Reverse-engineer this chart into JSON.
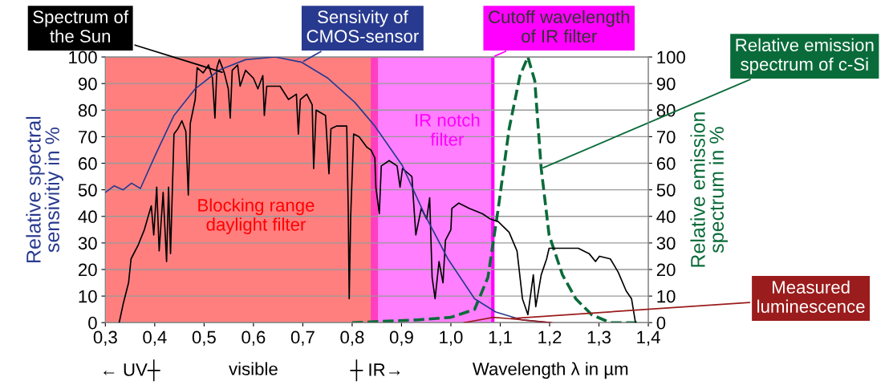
{
  "chart_data": {
    "type": "line",
    "xlabel": "Wavelength λ in µm",
    "ylabel": "Relative spectral\nsensivitiy in %",
    "y2label": "Relative emission\nspectrum in %",
    "xlim": [
      0.3,
      1.4
    ],
    "xticks": [
      {
        "value": 0.3,
        "label": "0,3"
      },
      {
        "value": 0.4,
        "label": "0,4"
      },
      {
        "value": 0.5,
        "label": "0,5"
      },
      {
        "value": 0.6,
        "label": "0,6"
      },
      {
        "value": 0.7,
        "label": "0,7"
      },
      {
        "value": 0.8,
        "label": "0,8"
      },
      {
        "value": 0.9,
        "label": "0,9"
      },
      {
        "value": 1.0,
        "label": "1,0"
      },
      {
        "value": 1.1,
        "label": "1,1"
      },
      {
        "value": 1.2,
        "label": "1,2"
      },
      {
        "value": 1.3,
        "label": "1,3"
      },
      {
        "value": 1.4,
        "label": "1,4"
      }
    ],
    "ylim": [
      0,
      100
    ],
    "yticks": [
      0,
      10,
      20,
      30,
      40,
      50,
      60,
      70,
      80,
      90,
      100
    ],
    "y2lim": [
      0,
      100
    ],
    "y2ticks": [
      0,
      10,
      20,
      30,
      40,
      50,
      60,
      70,
      80,
      90,
      100
    ],
    "grid": true,
    "legend": false,
    "marker": "none",
    "series": [
      {
        "name": "Spectrum of\nthe Sun",
        "color": "#000000",
        "line_style": "solid",
        "x": [
          0.328,
          0.336,
          0.347,
          0.352,
          0.366,
          0.379,
          0.393,
          0.398,
          0.404,
          0.409,
          0.417,
          0.424,
          0.428,
          0.432,
          0.439,
          0.447,
          0.455,
          0.463,
          0.468,
          0.472,
          0.482,
          0.486,
          0.498,
          0.509,
          0.517,
          0.522,
          0.526,
          0.531,
          0.541,
          0.549,
          0.553,
          0.557,
          0.568,
          0.573,
          0.584,
          0.6,
          0.609,
          0.619,
          0.622,
          0.627,
          0.654,
          0.671,
          0.687,
          0.691,
          0.695,
          0.708,
          0.719,
          0.722,
          0.727,
          0.746,
          0.753,
          0.757,
          0.768,
          0.789,
          0.792,
          0.794,
          0.797,
          0.803,
          0.814,
          0.83,
          0.838,
          0.846,
          0.848,
          0.855,
          0.859,
          0.875,
          0.891,
          0.897,
          0.902,
          0.921,
          0.929,
          0.94,
          0.951,
          0.957,
          0.962,
          0.968,
          0.976,
          0.984,
          0.989,
          1.0,
          1.002,
          1.016,
          1.037,
          1.064,
          1.08,
          1.096,
          1.118,
          1.134,
          1.145,
          1.156,
          1.167,
          1.172,
          1.183,
          1.194,
          1.199,
          1.215,
          1.237,
          1.258,
          1.28,
          1.293,
          1.301,
          1.323,
          1.339,
          1.355,
          1.366,
          1.374
        ],
        "values": [
          0,
          7,
          15,
          24,
          29,
          35,
          44,
          33,
          51,
          27,
          49,
          23,
          51,
          26,
          71,
          73,
          76,
          72,
          48,
          75,
          84,
          96,
          94,
          97,
          92,
          77,
          96,
          99,
          94,
          88,
          77,
          95,
          97,
          89,
          95,
          92,
          88,
          93,
          78,
          89,
          89,
          84,
          86,
          71,
          84,
          86,
          82,
          58,
          80,
          78,
          56,
          73,
          74,
          74,
          43,
          9,
          40,
          71,
          70,
          66,
          65,
          62,
          51,
          41,
          59,
          61,
          59,
          51,
          58,
          55,
          33,
          43,
          39,
          47,
          17,
          9,
          23,
          15,
          31,
          35,
          43,
          45,
          43,
          41,
          39,
          38,
          34,
          27,
          9,
          3,
          18,
          6,
          18,
          24,
          28,
          28,
          28,
          28,
          26,
          23,
          25,
          24,
          19,
          12,
          9,
          0
        ]
      },
      {
        "name": "Sensivity of\nCMOS-sensor",
        "color": "#283a8f",
        "line_style": "solid",
        "x": [
          0.3,
          0.318,
          0.336,
          0.353,
          0.371,
          0.401,
          0.439,
          0.482,
          0.53,
          0.584,
          0.644,
          0.698,
          0.751,
          0.805,
          0.846,
          0.902,
          0.946,
          0.994,
          1.048,
          1.091,
          1.145,
          1.2
        ],
        "values": [
          49,
          51.5,
          50,
          52.5,
          50.5,
          63,
          78,
          88,
          95,
          99,
          100,
          98,
          92,
          83,
          74,
          59,
          41,
          24,
          9,
          4,
          1,
          0
        ]
      },
      {
        "name": "Relative emission\nspectrum of c-Si",
        "color": "#0a6b3a",
        "line_style": "dashed",
        "axis": "y2",
        "x": [
          0.8,
          0.929,
          1.0,
          1.048,
          1.075,
          1.096,
          1.118,
          1.14,
          1.156,
          1.17,
          1.183,
          1.199,
          1.226,
          1.253,
          1.285,
          1.323,
          1.38
        ],
        "values": [
          0,
          1,
          2,
          5,
          17,
          43,
          73,
          93,
          100,
          91,
          58,
          33,
          18,
          9,
          3,
          0,
          0
        ]
      },
      {
        "name": "Measured\nluminescence",
        "color": "#9b1c1c",
        "line_style": "solid",
        "x": [
          1.027,
          1.086,
          1.118,
          1.204
        ],
        "values": [
          0,
          2,
          1.5,
          0
        ]
      }
    ],
    "bands": [
      {
        "axis": "x",
        "from": 0.3,
        "to": 0.85,
        "label": "Blocking range\ndaylight filter",
        "color": "#ff0000"
      },
      {
        "axis": "x",
        "from": 0.84,
        "to": 1.085,
        "label": "IR notch\nfilter",
        "color": "#ff00ff"
      }
    ],
    "ref_lines": [
      {
        "axis": "x",
        "value": 1.085,
        "label": "Cutoff wavelength\nof IR filter",
        "color": "#ff00ff",
        "line_style": "solid"
      }
    ],
    "annotations": [
      "← UV┼",
      "visible",
      "┼ IR→"
    ]
  }
}
